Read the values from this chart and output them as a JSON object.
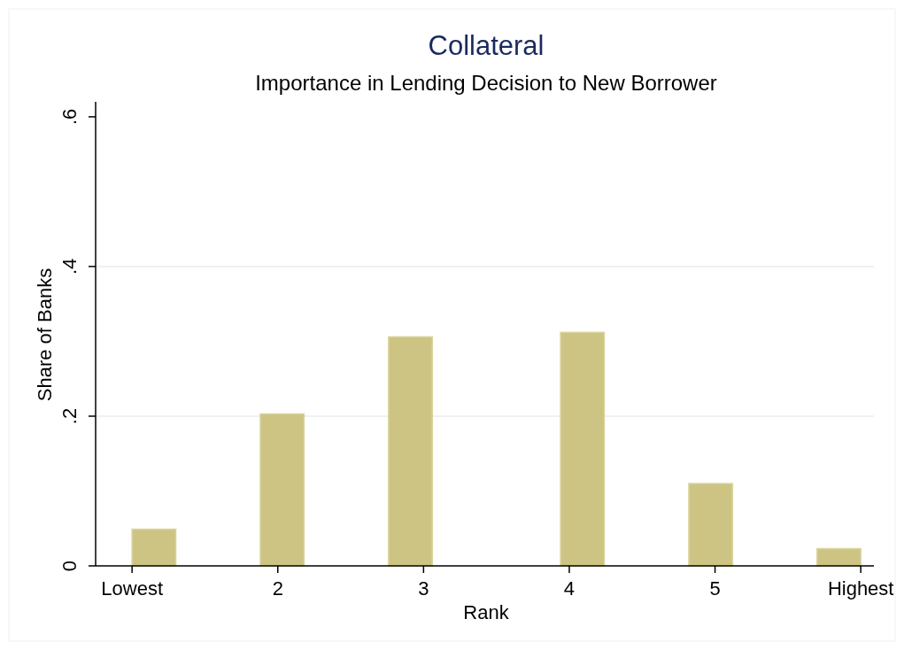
{
  "chart_data": {
    "type": "bar",
    "title": "Collateral",
    "subtitle": "Importance in Lending Decision to New Borrower",
    "xlabel": "Rank",
    "ylabel": "Share of Banks",
    "x": [
      1.15,
      2.03,
      2.91,
      4.09,
      4.97,
      5.85
    ],
    "values": [
      0.049,
      0.203,
      0.306,
      0.312,
      0.11,
      0.023
    ],
    "color": "#cdc483",
    "xlim": [
      0.75,
      6.09
    ],
    "xticks": [
      {
        "value": 1,
        "label": "Lowest"
      },
      2,
      3,
      4,
      5,
      {
        "value": 6,
        "label": "Highest"
      }
    ],
    "ylim": [
      0,
      0.62
    ],
    "yticks": [
      {
        "value": 0,
        "label": "0"
      },
      {
        "value": 0.2,
        "label": ".2"
      },
      {
        "value": 0.4,
        "label": ".4"
      },
      {
        "value": 0.6,
        "label": ".6"
      }
    ],
    "grid": "y"
  }
}
